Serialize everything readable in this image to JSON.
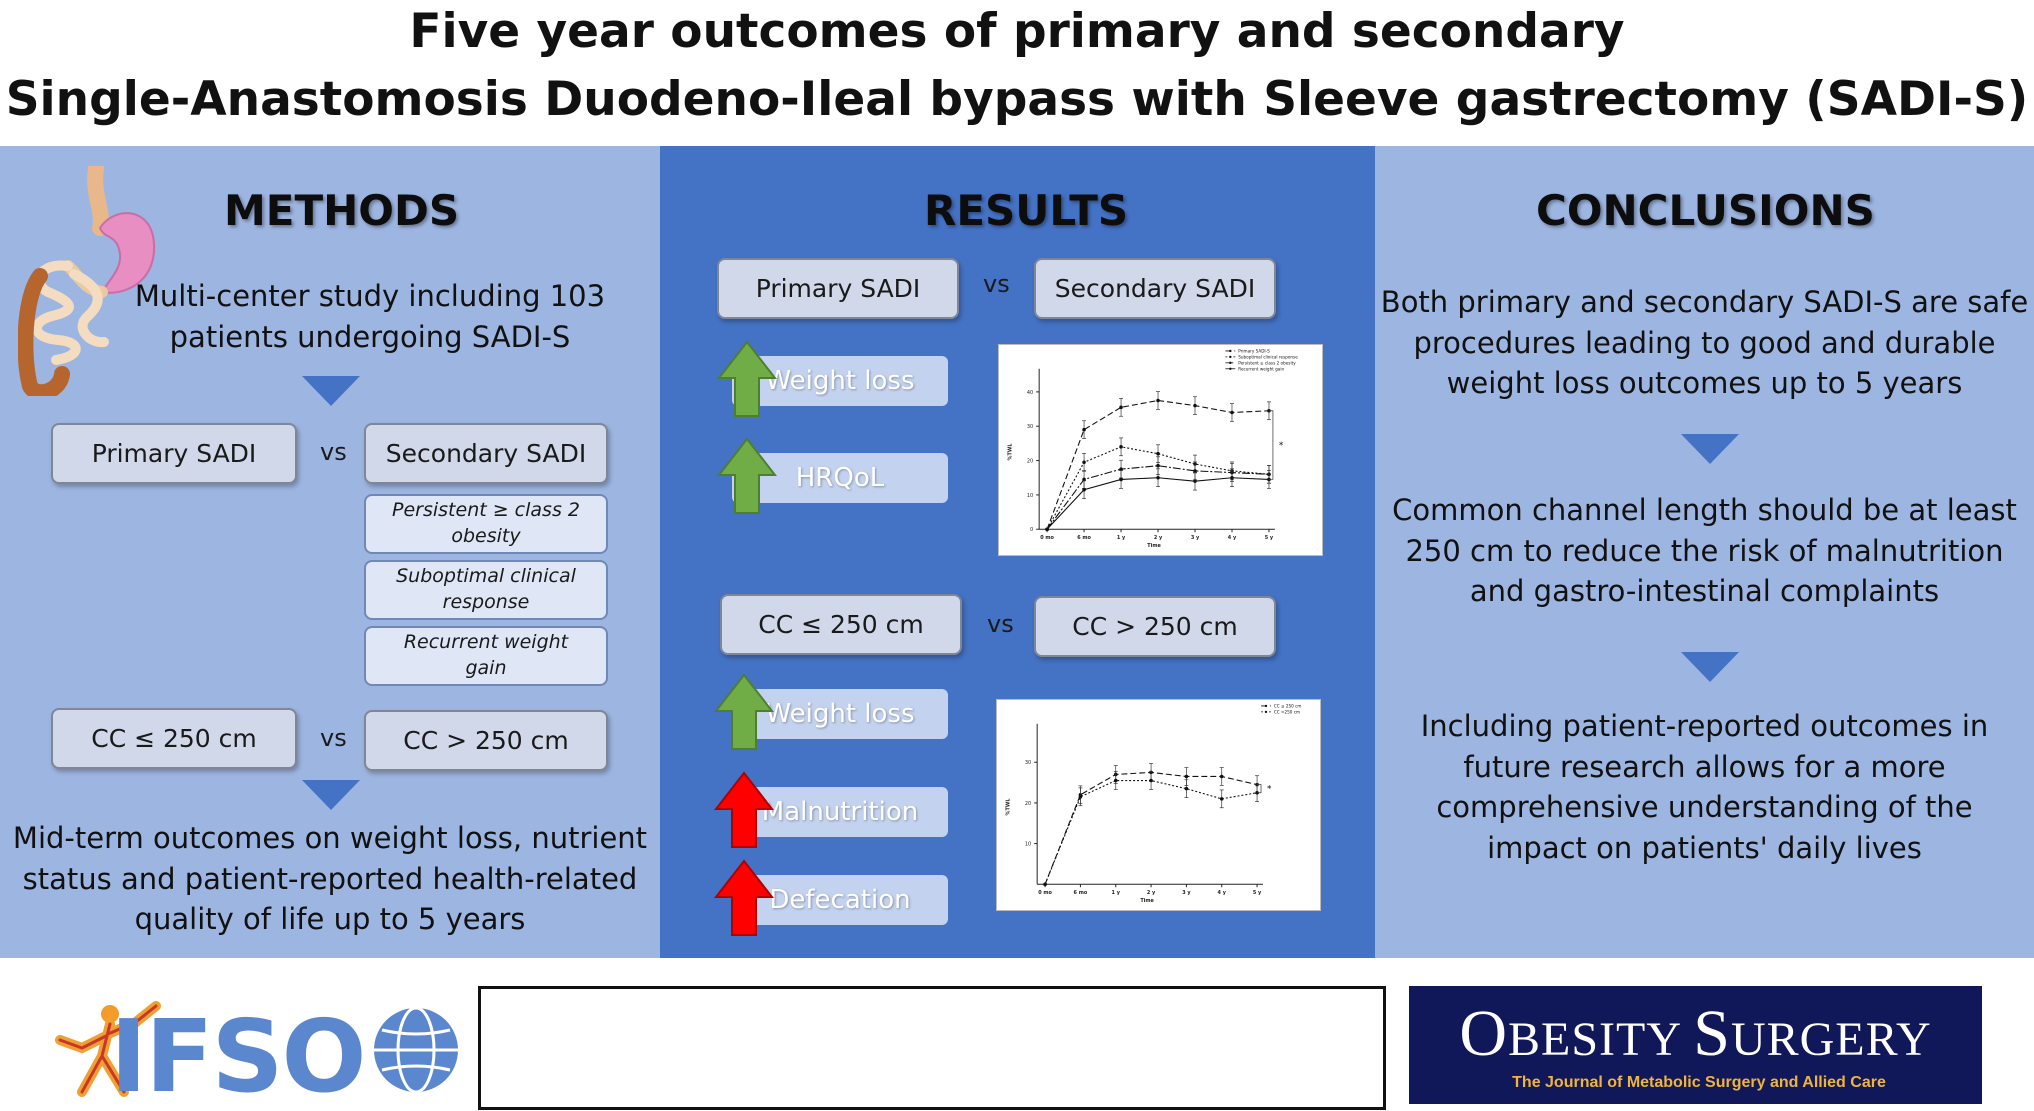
{
  "title": {
    "line1": "Five year outcomes of primary and secondary",
    "line2": "Single-Anastomosis Duodeno-Ileal bypass with Sleeve gastrectomy (SADI-S)"
  },
  "methods": {
    "heading": "METHODS",
    "intro": [
      "Multi-center study including 103",
      "patients undergoing SADI-S"
    ],
    "primary": "Primary SADI",
    "vs": "vs",
    "secondary": "Secondary SADI",
    "indications": [
      [
        "Persistent ≥ class 2",
        "obesity"
      ],
      [
        "Suboptimal clinical",
        "response"
      ],
      [
        "Recurrent weight",
        "gain"
      ]
    ],
    "cc_low": "CC ≤ 250 cm",
    "cc_high": "CC > 250 cm",
    "outcomes": [
      "Mid-term outcomes on weight loss, nutrient",
      "status and patient-reported health-related",
      "quality of life up to 5 years"
    ]
  },
  "results": {
    "heading": "RESULTS",
    "compare1": {
      "left": "Primary SADI",
      "vs": "vs",
      "right": "Secondary SADI"
    },
    "outcomes1": [
      "Weight loss",
      "HRQoL"
    ],
    "compare2": {
      "left": "CC ≤ 250 cm",
      "vs": "vs",
      "right": "CC > 250 cm"
    },
    "outcomes2": [
      "Weight loss",
      "Malnutrition",
      "Defecation"
    ],
    "colors": {
      "up_good": "#70ad47",
      "up_bad": "#ff0000"
    }
  },
  "chart_data": [
    {
      "type": "line",
      "x": [
        "0 mo",
        "6 mo",
        "1 y",
        "2 y",
        "3 y",
        "4 y",
        "5 y"
      ],
      "xlabel": "Time",
      "ylabel": "%TWL",
      "yticks": [
        0,
        10,
        20,
        30,
        40
      ],
      "ylim": [
        0,
        45
      ],
      "legend": "top-right",
      "annotation": "*",
      "series": [
        {
          "name": "Primary SADI-S",
          "values": [
            0,
            29,
            35.5,
            37.5,
            36,
            34,
            34.5
          ]
        },
        {
          "name": "Suboptimal clinical response",
          "values": [
            0,
            19.5,
            24,
            22,
            19,
            17,
            16
          ]
        },
        {
          "name": "Persistent ≥ class 2 obesity",
          "values": [
            0,
            14.5,
            17.5,
            18.5,
            17,
            16.5,
            16
          ]
        },
        {
          "name": "Recurrent weight gain",
          "values": [
            0,
            11.5,
            14.5,
            15,
            14,
            15,
            14.5
          ]
        }
      ]
    },
    {
      "type": "line",
      "x": [
        "0 mo",
        "6 mo",
        "1 y",
        "2 y",
        "3 y",
        "4 y",
        "5 y"
      ],
      "xlabel": "Time",
      "ylabel": "%TWL",
      "yticks": [
        10,
        20,
        30
      ],
      "ylim": [
        0,
        38
      ],
      "legend": "top-right",
      "annotation": "*",
      "series": [
        {
          "name": "CC ≤ 250 cm",
          "values": [
            0,
            22,
            27,
            27.5,
            26.5,
            26.5,
            24.5
          ]
        },
        {
          "name": "CC >250 cm",
          "values": [
            0,
            21.5,
            25.5,
            25.5,
            23.5,
            21,
            22.5
          ]
        }
      ]
    }
  ],
  "conclusions": {
    "heading": "CONCLUSIONS",
    "c1": [
      "Both primary and secondary SADI-S are safe",
      "procedures leading to good and durable",
      "weight loss outcomes up to 5 years"
    ],
    "c2": [
      "Common channel length should be at least",
      "250 cm to reduce the risk of malnutrition",
      "and gastro-intestinal complaints"
    ],
    "c3": [
      "Including patient-reported outcomes in",
      "future research allows for a more",
      "comprehensive understanding of the",
      "impact on patients' daily lives"
    ]
  },
  "footer": {
    "ifso": "IFSO",
    "journal_big1": "O",
    "journal_rest1": "BESITY",
    "journal_big2": "S",
    "journal_rest2": "URGERY",
    "journal_subtitle": "The Journal of Metabolic Surgery and Allied Care"
  }
}
